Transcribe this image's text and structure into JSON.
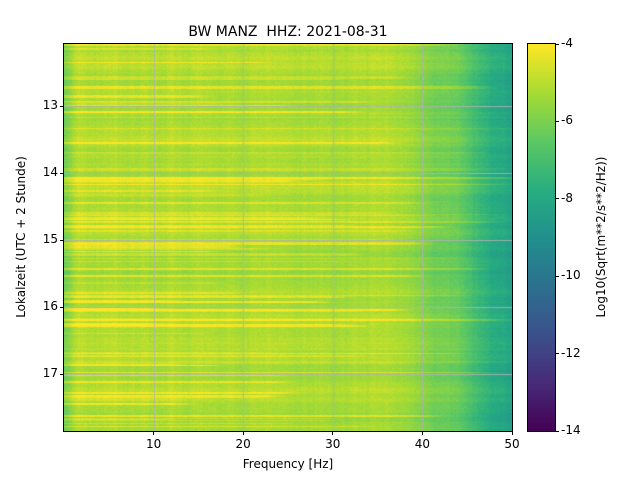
{
  "title": "BW MANZ  HHZ: 2021-08-31",
  "x_axis": {
    "label": "Frequency [Hz]",
    "ticks": [
      10,
      20,
      30,
      40,
      50
    ],
    "range": [
      0,
      50
    ]
  },
  "y_axis": {
    "label": "Lokalzeit (UTC + 2 Stunde)",
    "ticks": [
      13,
      14,
      15,
      16,
      17
    ],
    "range": [
      12.07,
      17.85
    ]
  },
  "colorbar": {
    "label": "Log10(Sqrt(m**2/s**2/Hz))",
    "ticks": [
      -4,
      -6,
      -8,
      -10,
      -12,
      -14
    ],
    "range": [
      -14,
      -4
    ],
    "colormap": "viridis"
  },
  "chart_data": {
    "type": "heatmap",
    "subtype": "spectrogram",
    "title": "BW MANZ  HHZ: 2021-08-31",
    "xlabel": "Frequency [Hz]",
    "ylabel": "Lokalzeit (UTC + 2 Stunde)",
    "colorbar_label": "Log10(Sqrt(m**2/s**2/Hz))",
    "x_range_hz": [
      0,
      50
    ],
    "y_range_hours_local": [
      12.07,
      17.85
    ],
    "color_range": [
      -14,
      -4
    ],
    "colormap": "viridis",
    "grid": true,
    "freq_bin_centers_hz": [
      2.5,
      7.5,
      12.5,
      17.5,
      22.5,
      27.5,
      32.5,
      37.5,
      42.5,
      47.5
    ],
    "time_bin_centers_hours": [
      12.5,
      13.5,
      14.5,
      15.5,
      16.5,
      17.5
    ],
    "approx_levels_log10": [
      [
        -5.7,
        -5.3,
        -5.2,
        -5.2,
        -5.3,
        -5.3,
        -5.4,
        -5.5,
        -6.2,
        -7.6
      ],
      [
        -5.6,
        -5.2,
        -5.1,
        -5.2,
        -5.3,
        -5.3,
        -5.4,
        -5.5,
        -6.1,
        -7.5
      ],
      [
        -5.7,
        -5.3,
        -5.2,
        -5.2,
        -5.2,
        -5.3,
        -5.4,
        -5.5,
        -6.2,
        -7.6
      ],
      [
        -5.6,
        -5.2,
        -5.1,
        -5.1,
        -5.2,
        -5.3,
        -5.3,
        -5.4,
        -6.0,
        -7.4
      ],
      [
        -5.6,
        -5.1,
        -5.1,
        -5.1,
        -5.2,
        -5.2,
        -5.3,
        -5.4,
        -5.9,
        -7.3
      ],
      [
        -5.7,
        -5.2,
        -5.1,
        -5.2,
        -5.2,
        -5.3,
        -5.4,
        -5.5,
        -6.1,
        -7.5
      ]
    ],
    "features": [
      "numerous narrow horizontal bright (yellow) streaks spanning ~0-35 Hz at many times",
      "power falls off above ~38 Hz, reaching teal levels near -8 at 50 Hz",
      "slightly darker column at the lowest frequencies (<1.5 Hz)",
      "faint brighter vertical band near 43-45 Hz"
    ],
    "render_params": {
      "seed": 12345,
      "base_level": -5.25,
      "low_freq_dropoff": 0.7,
      "rolloff_start_hz": 36,
      "rolloff_depth": 3.1,
      "streak_count": 85,
      "grid_color": "rgba(178,178,178,0.85)"
    }
  }
}
